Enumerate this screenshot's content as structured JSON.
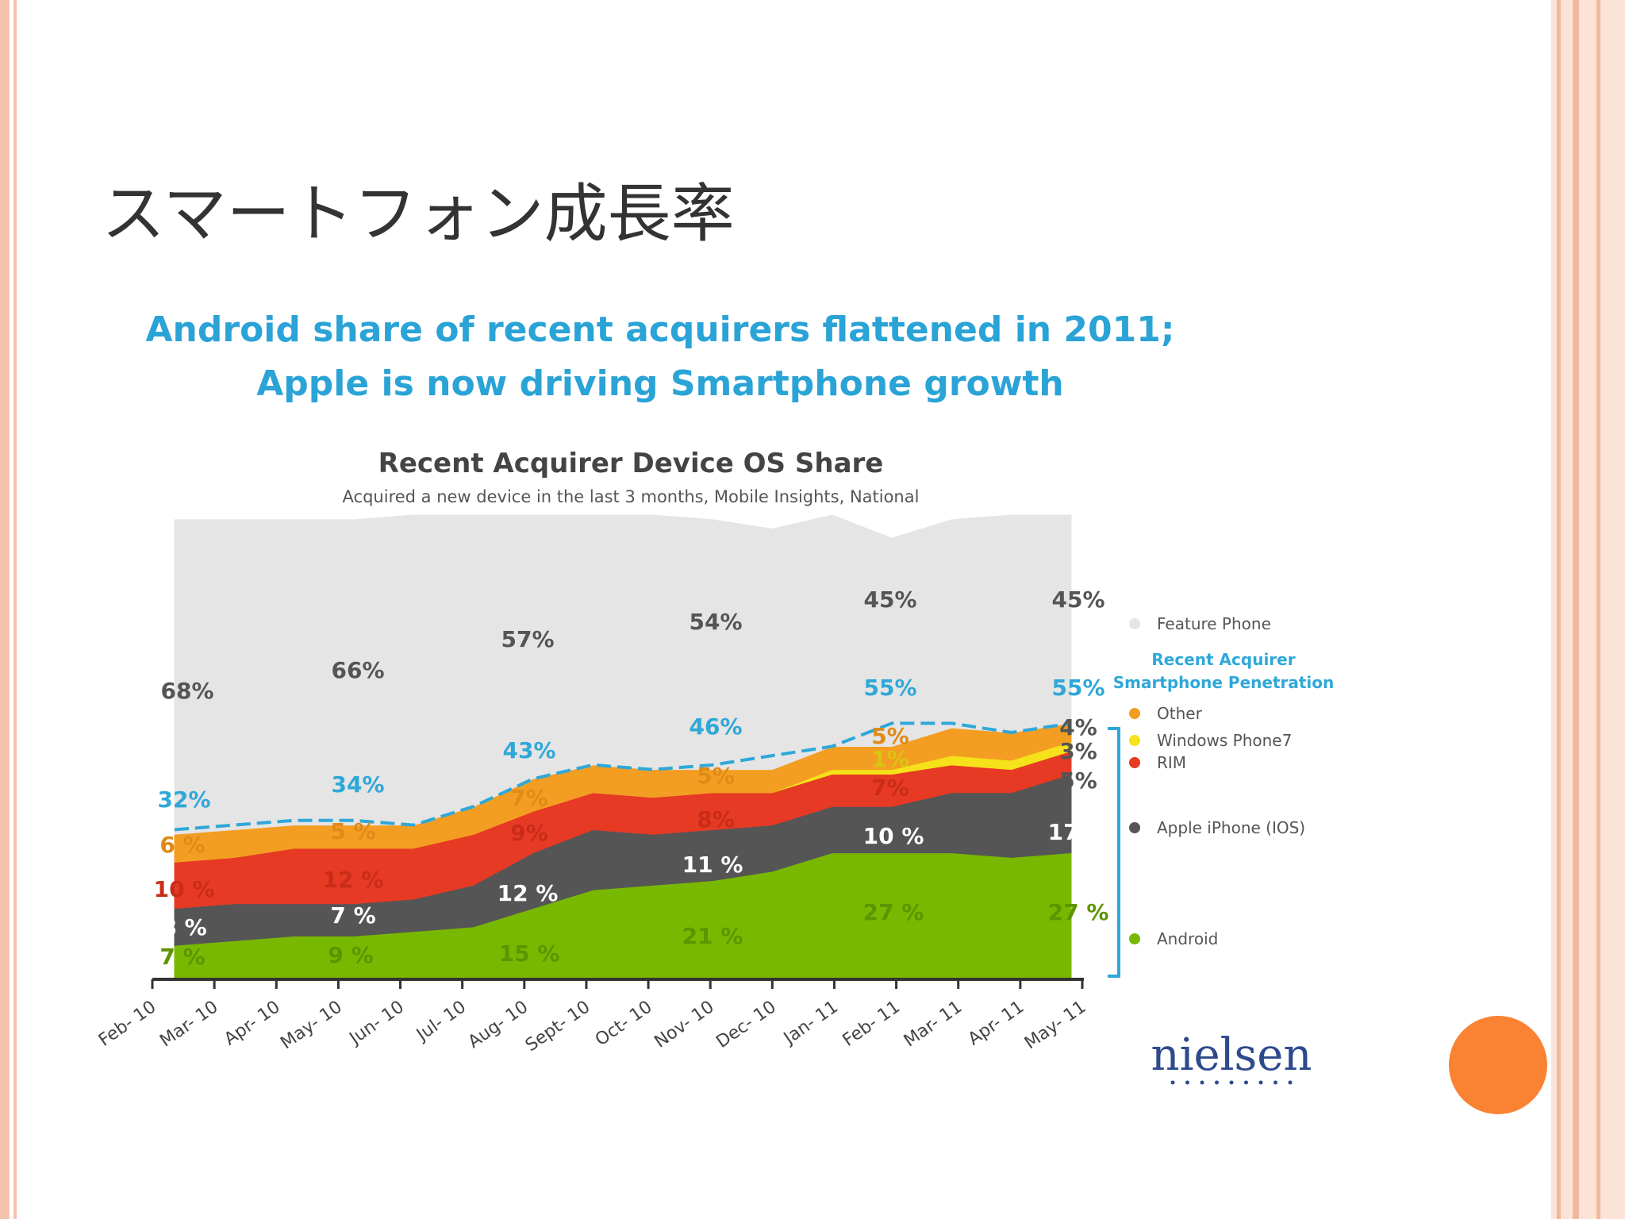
{
  "slide": {
    "title": "スマートフォン成長率",
    "accent_color": "#fa8233"
  },
  "chart_data": {
    "type": "area",
    "headline": [
      "Android share of recent acquirers flattened in 2011;",
      "Apple is now driving Smartphone growth"
    ],
    "title": "Recent Acquirer Device OS Share",
    "subtitle": "Acquired a new device in the last 3 months, Mobile Insights, National",
    "categories": [
      "Feb- 10",
      "Mar- 10",
      "Apr- 10",
      "May- 10",
      "Jun- 10",
      "Jul- 10",
      "Aug- 10",
      "Sept- 10",
      "Oct- 10",
      "Nov- 10",
      "Dec- 10",
      "Jan- 11",
      "Feb- 11",
      "Mar- 11",
      "Apr- 11",
      "May- 11"
    ],
    "ylim": [
      0,
      100
    ],
    "series": [
      {
        "name": "Android",
        "color": "#78b800",
        "values": [
          7,
          8,
          9,
          9,
          10,
          11,
          15,
          19,
          20,
          21,
          23,
          27,
          27,
          27,
          26,
          27
        ]
      },
      {
        "name": "Apple iPhone (IOS)",
        "color": "#555555",
        "values": [
          8,
          8,
          7,
          7,
          7,
          9,
          12,
          13,
          11,
          11,
          10,
          10,
          10,
          13,
          14,
          17
        ]
      },
      {
        "name": "RIM",
        "color": "#e63a24",
        "values": [
          10,
          10,
          12,
          12,
          11,
          11,
          9,
          8,
          8,
          8,
          7,
          7,
          7,
          6,
          5,
          5
        ]
      },
      {
        "name": "Windows Phone7",
        "color": "#f5e21a",
        "values": [
          0,
          0,
          0,
          0,
          0,
          0,
          0,
          0,
          0,
          0,
          0,
          1,
          1,
          2,
          2,
          2
        ]
      },
      {
        "name": "Other",
        "color": "#f39e22",
        "values": [
          6,
          6,
          5,
          5,
          5,
          6,
          7,
          6,
          6,
          5,
          5,
          5,
          5,
          6,
          6,
          4
        ]
      },
      {
        "name": "Feature Phone",
        "color": "#e5e5e5",
        "values": [
          68,
          67,
          66,
          66,
          67,
          63,
          57,
          54,
          55,
          54,
          52,
          50,
          45,
          45,
          47,
          45
        ]
      }
    ],
    "smartphone_penetration": {
      "name": "Recent Acquirer Smartphone Penetration",
      "color": "#2fa8d8",
      "values": [
        32,
        33,
        34,
        34,
        33,
        37,
        43,
        46,
        45,
        46,
        48,
        50,
        55,
        55,
        53,
        55
      ]
    },
    "labels": [
      {
        "text": "68%",
        "color": "#555555"
      },
      {
        "text": "66%",
        "color": "#555555"
      },
      {
        "text": "57%",
        "color": "#555555"
      },
      {
        "text": "54%",
        "color": "#555555"
      },
      {
        "text": "45%",
        "color": "#555555"
      },
      {
        "text": "45%",
        "color": "#555555"
      },
      {
        "text": "32%",
        "color": "#2fa8d8"
      },
      {
        "text": "34%",
        "color": "#2fa8d8"
      },
      {
        "text": "43%",
        "color": "#2fa8d8"
      },
      {
        "text": "46%",
        "color": "#2fa8d8"
      },
      {
        "text": "55%",
        "color": "#2fa8d8"
      },
      {
        "text": "55%",
        "color": "#2fa8d8"
      },
      {
        "text": "6 %",
        "color": "#e08a18"
      },
      {
        "text": "5 %",
        "color": "#e08a18"
      },
      {
        "text": "7%",
        "color": "#e08a18"
      },
      {
        "text": "5%",
        "color": "#e08a18"
      },
      {
        "text": "5%",
        "color": "#e08a18"
      },
      {
        "text": "4%",
        "color": "#555555"
      },
      {
        "text": "1%",
        "color": "#d9c610"
      },
      {
        "text": "3%",
        "color": "#555555"
      },
      {
        "text": "10 %",
        "color": "#c92c18"
      },
      {
        "text": "12 %",
        "color": "#c92c18"
      },
      {
        "text": "9%",
        "color": "#c92c18"
      },
      {
        "text": "8%",
        "color": "#c92c18"
      },
      {
        "text": "7%",
        "color": "#c92c18"
      },
      {
        "text": "5%",
        "color": "#555555"
      },
      {
        "text": "8 %",
        "color": "#ffffff"
      },
      {
        "text": "7 %",
        "color": "#ffffff"
      },
      {
        "text": "12 %",
        "color": "#ffffff"
      },
      {
        "text": "11 %",
        "color": "#ffffff"
      },
      {
        "text": "10 %",
        "color": "#ffffff"
      },
      {
        "text": "17 %",
        "color": "#ffffff"
      },
      {
        "text": "7 %",
        "color": "#5e9400"
      },
      {
        "text": "9 %",
        "color": "#5e9400"
      },
      {
        "text": "15 %",
        "color": "#5e9400"
      },
      {
        "text": "21 %",
        "color": "#5e9400"
      },
      {
        "text": "27 %",
        "color": "#5e9400"
      },
      {
        "text": "27 %",
        "color": "#5e9400"
      }
    ],
    "legend_position": "right",
    "legend": [
      {
        "label": "Feature Phone",
        "color": "#e5e5e5"
      },
      {
        "label": "Recent Acquirer Smartphone Penetration",
        "color": "#2fa8d8"
      },
      {
        "label": "Other",
        "color": "#f39e22"
      },
      {
        "label": "Windows Phone7",
        "color": "#f5e21a"
      },
      {
        "label": "RIM",
        "color": "#e63a24"
      },
      {
        "label": "Apple iPhone (IOS)",
        "color": "#555555"
      },
      {
        "label": "Android",
        "color": "#78b800"
      }
    ],
    "source_logo": "nielsen"
  }
}
